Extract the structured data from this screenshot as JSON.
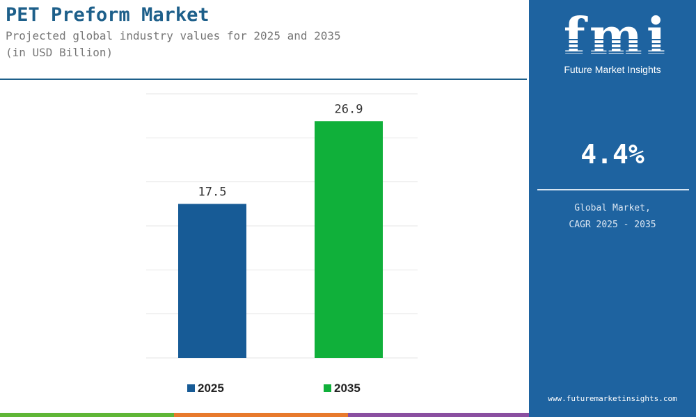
{
  "header": {
    "title": "PET Preform Market",
    "subtitle_line1": "Projected global industry values for 2025 and 2035",
    "subtitle_line2": "(in USD Billion)"
  },
  "sidebar": {
    "logo": "fmi",
    "logo_tagline": "Future Market Insights",
    "cagr_value": "4.4%",
    "cagr_label_line1": "Global Market,",
    "cagr_label_line2": "CAGR 2025 - 2035",
    "website": "www.futuremarketinsights.com"
  },
  "colors": {
    "title": "#1d5f8a",
    "sidebar_bg": "#1e63a0",
    "bar_2025": "#175b96",
    "bar_2035": "#10b03a"
  },
  "chart_data": {
    "type": "bar",
    "categories": [
      "2025",
      "2035"
    ],
    "values": [
      17.5,
      26.9
    ],
    "data_labels": [
      "17.5",
      "26.9"
    ],
    "colors": [
      "#175b96",
      "#10b03a"
    ],
    "legend": [
      "2025",
      "2035"
    ],
    "legend_position": "bottom",
    "ylim": [
      0,
      30
    ],
    "grid": true,
    "title": "PET Preform Market",
    "xlabel": "",
    "ylabel": ""
  }
}
